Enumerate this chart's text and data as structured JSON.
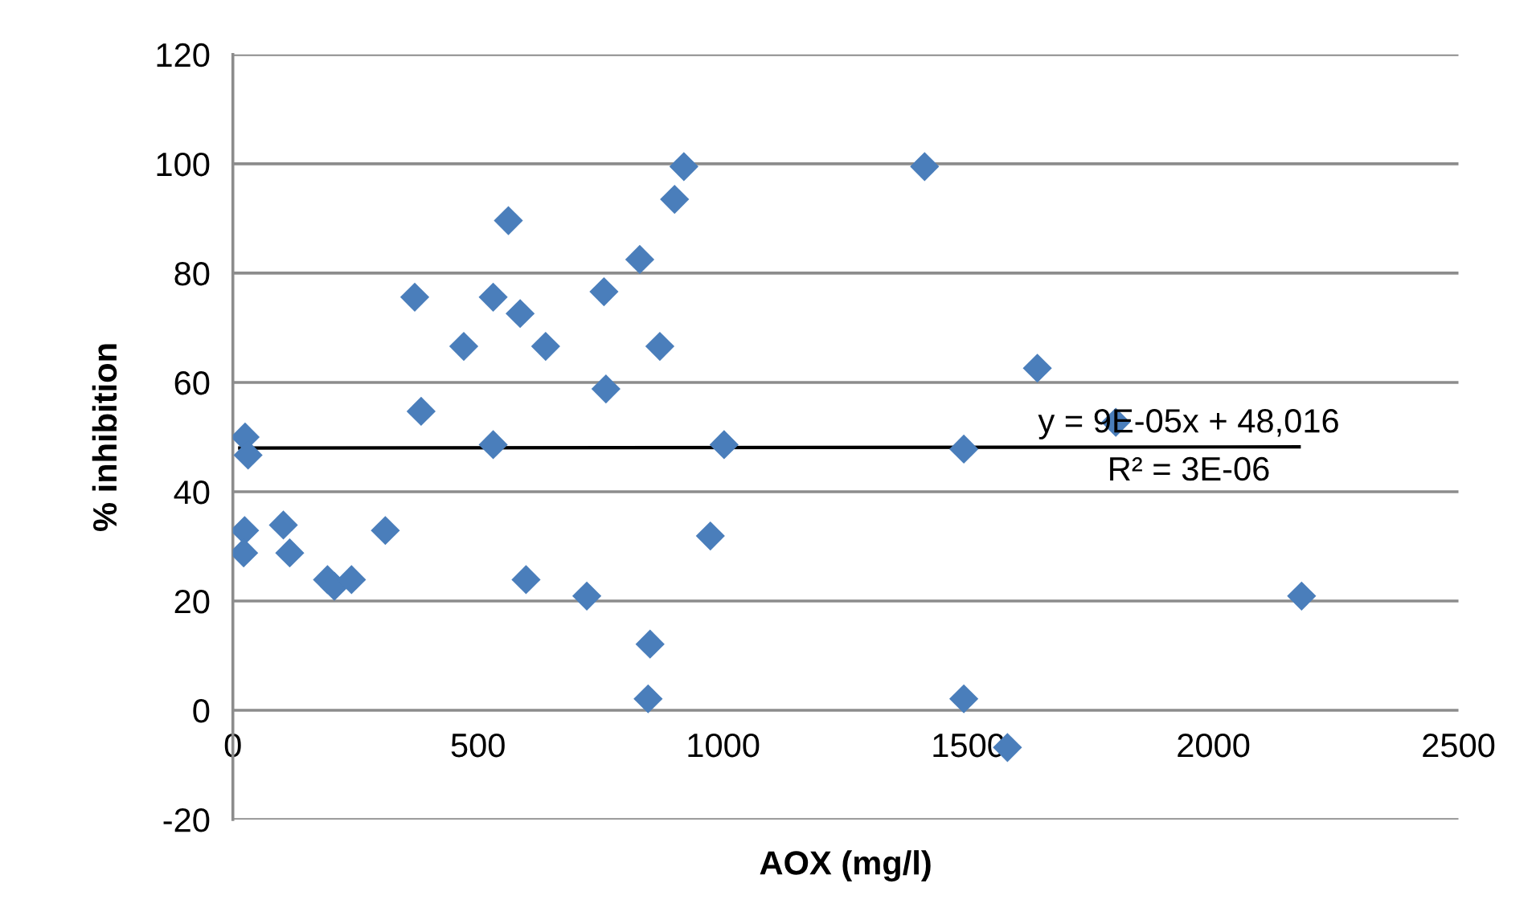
{
  "chart_data": {
    "type": "scatter",
    "xlabel": "AOX (mg/l)",
    "ylabel": "% inhibition",
    "xlim": [
      0,
      2500
    ],
    "xticks": [
      0,
      500,
      1000,
      1500,
      2000,
      2500
    ],
    "ylim": [
      -20,
      120
    ],
    "yticks": [
      -20,
      0,
      20,
      40,
      60,
      80,
      100,
      120
    ],
    "grid": "y",
    "marker": "diamond",
    "legend": false,
    "annotations": [
      "y = 9E-05x + 48,016",
      "R² = 3E-06"
    ],
    "series": [
      {
        "color": "#4a7ebb",
        "x": [
          25,
          31,
          24,
          22,
          103,
          116,
          193,
          207,
          242,
          311,
          371,
          384,
          471,
          531,
          531,
          562,
          586,
          598,
          638,
          722,
          757,
          761,
          830,
          851,
          847,
          871,
          901,
          920,
          974,
          1002,
          1411,
          1641,
          1801,
          1491,
          2180,
          1491,
          1580
        ],
        "values": [
          50,
          46.7,
          32.9,
          28.8,
          33.9,
          28.8,
          23.9,
          22.7,
          23.9,
          32.9,
          75.6,
          54.7,
          66.6,
          75.6,
          48.6,
          89.6,
          72.6,
          23.9,
          66.6,
          20.9,
          76.6,
          58.8,
          82.5,
          12.1,
          2.1,
          66.6,
          93.5,
          99.5,
          31.9,
          48.6,
          99.5,
          62.6,
          52.7,
          47.8,
          20.9,
          2.1,
          -6.8
        ]
      },
      {
        "type": "line",
        "color": "#000000",
        "marker": "none",
        "x": [
          14,
          2175
        ],
        "values": [
          48.0,
          48.2
        ]
      }
    ]
  }
}
